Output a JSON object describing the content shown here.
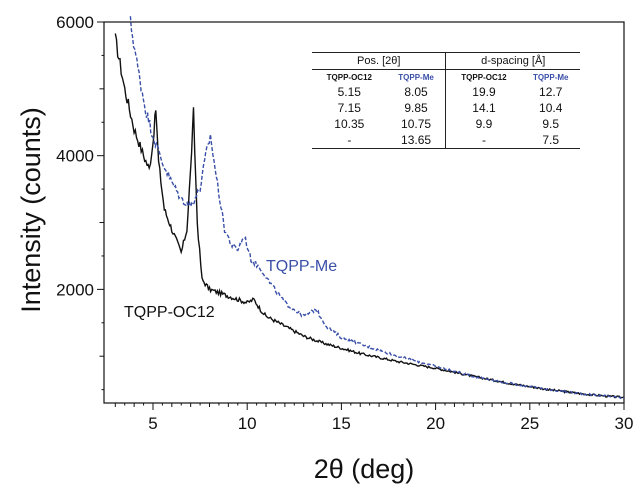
{
  "chart_data": {
    "type": "line",
    "xlabel": "2θ (deg)",
    "ylabel": "Intensity (counts)",
    "xlim": [
      2.4,
      30
    ],
    "ylim": [
      300,
      6000
    ],
    "x_ticks": [
      5,
      10,
      15,
      20,
      25,
      30
    ],
    "y_tick_labels": [
      2000,
      4000,
      6000
    ],
    "series": [
      {
        "name": "TQPP-OC12",
        "color": "#111111",
        "style": "solid",
        "x": [
          3.0,
          3.5,
          4.0,
          4.5,
          4.8,
          5.0,
          5.15,
          5.3,
          5.6,
          6.0,
          6.5,
          6.8,
          7.0,
          7.15,
          7.35,
          7.6,
          8.0,
          9.0,
          10.0,
          10.35,
          10.7,
          11.0,
          12.0,
          13.0,
          14.0,
          15.0,
          16.0,
          18.0,
          20.0,
          22.0,
          24.0,
          26.0,
          28.0,
          30.0
        ],
        "y": [
          5750,
          5000,
          4400,
          4000,
          3800,
          4200,
          4700,
          3900,
          3200,
          2900,
          2550,
          2900,
          3800,
          4650,
          3000,
          2150,
          2000,
          1900,
          1800,
          1850,
          1700,
          1600,
          1450,
          1300,
          1200,
          1120,
          1040,
          920,
          820,
          700,
          590,
          500,
          430,
          380
        ]
      },
      {
        "name": "TQPP-Me",
        "color": "#3a4fa8",
        "style": "dashed",
        "x": [
          3.8,
          4.2,
          4.6,
          5.0,
          5.5,
          6.0,
          6.5,
          7.0,
          7.5,
          7.8,
          8.05,
          8.3,
          8.8,
          9.2,
          9.5,
          9.85,
          10.2,
          10.75,
          11.2,
          12.0,
          13.0,
          13.65,
          14.2,
          15.0,
          16.0,
          18.0,
          20.0,
          22.0,
          24.0,
          26.0,
          28.0,
          30.0
        ],
        "y": [
          6000,
          5300,
          4700,
          4300,
          3900,
          3600,
          3350,
          3250,
          3500,
          4000,
          4300,
          3800,
          2900,
          2650,
          2600,
          2800,
          2450,
          2300,
          2100,
          1800,
          1600,
          1700,
          1450,
          1280,
          1180,
          1000,
          850,
          700,
          590,
          500,
          430,
          380
        ]
      }
    ],
    "annotations": [
      "TQPP-Me",
      "TQPP-OC12"
    ]
  },
  "table": {
    "group_headers": [
      "Pos. [2θ]",
      "d-spacing [Å]"
    ],
    "sub_headers": [
      "TQPP-OC12",
      "TQPP-Me",
      "TQPP-OC12",
      "TQPP-Me"
    ],
    "rows": [
      [
        "5.15",
        "8.05",
        "19.9",
        "12.7"
      ],
      [
        "7.15",
        "9.85",
        "14.1",
        "10.4"
      ],
      [
        "10.35",
        "10.75",
        "9.9",
        "9.5"
      ],
      [
        "-",
        "13.65",
        "-",
        "7.5"
      ]
    ]
  }
}
